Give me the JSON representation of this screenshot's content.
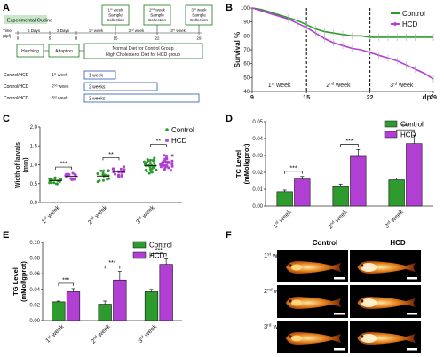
{
  "colors": {
    "control": "#2e9b2e",
    "hcd": "#b13fd3",
    "dark": "#222222",
    "blue": "#2a55b5",
    "green_box": "#1a7a1a"
  },
  "panels": {
    "A": "A",
    "B": "B",
    "C": "C",
    "D": "D",
    "E": "E",
    "F": "F"
  },
  "outline": {
    "title": "Experimental Outline",
    "time_label": "Time",
    "time_unit": "(dpf)",
    "days": [
      "0",
      "5",
      "8",
      "15",
      "22",
      "29"
    ],
    "intervals": [
      "5 Days",
      "3 Days",
      "1st week",
      "2nd week",
      "3rd week"
    ],
    "collections": [
      "1st week Sample Collection",
      "2nd week Sample Collection",
      "3rd week Sample Collection"
    ],
    "hatching": "Hatching",
    "adaption": "Adaption",
    "diet_line1": "Normal Diet for Control Group",
    "diet_line2": "High Cholesterol Diet for HCD group",
    "groups": [
      {
        "label": "Control/HCD 1st week",
        "bar": "1 week"
      },
      {
        "label": "Control/HCD 2nd week",
        "bar": "2 weeks"
      },
      {
        "label": "Control/HCD 3rd week",
        "bar": "3 weeks"
      }
    ]
  },
  "chart_data": [
    {
      "panel": "B",
      "type": "line",
      "ylabel": "Survival %",
      "xlabel": "dpf",
      "xlim": [
        9,
        29
      ],
      "ylim": [
        40,
        100
      ],
      "xticks": [
        "9",
        "15",
        "22",
        "29"
      ],
      "yticks": [
        "40",
        "50",
        "60",
        "70",
        "80",
        "90",
        "100"
      ],
      "legend": [
        "Control",
        "HCD"
      ],
      "annotations": [
        "1st week",
        "2nd week",
        "3rd week"
      ],
      "series": [
        {
          "name": "Control",
          "x": [
            9,
            10,
            11,
            12,
            13,
            14,
            15,
            16,
            17,
            18,
            19,
            20,
            21,
            22,
            23,
            24,
            25,
            26,
            27,
            28,
            29
          ],
          "values": [
            100,
            99,
            97,
            95,
            93,
            91,
            88,
            85,
            83,
            82,
            81,
            80,
            80,
            79,
            79,
            79,
            79,
            79,
            79,
            79,
            79
          ]
        },
        {
          "name": "HCD",
          "x": [
            9,
            10,
            11,
            12,
            13,
            14,
            15,
            16,
            17,
            18,
            19,
            20,
            21,
            22,
            23,
            24,
            25,
            26,
            27,
            28,
            29
          ],
          "values": [
            100,
            98,
            96,
            94,
            92,
            89,
            86,
            82,
            78,
            75,
            73,
            71,
            70,
            68,
            66,
            64,
            62,
            59,
            56,
            53,
            49
          ]
        }
      ]
    },
    {
      "panel": "C",
      "type": "scatter",
      "ylabel": "Width of larvals (mm)",
      "ylim": [
        0,
        2
      ],
      "yticks": [
        "0.0",
        "0.5",
        "1.0",
        "1.5",
        "2.0"
      ],
      "categories": [
        "1st week",
        "2nd week",
        "3rd week"
      ],
      "legend": [
        "Control",
        "HCD"
      ],
      "significance": [
        "***",
        "**",
        "**"
      ],
      "series": [
        {
          "name": "Control",
          "values": [
            0.58,
            0.7,
            0.98
          ]
        },
        {
          "name": "HCD",
          "values": [
            0.69,
            0.82,
            1.05
          ]
        }
      ]
    },
    {
      "panel": "D",
      "type": "bar",
      "ylabel": "TC Level (mMol/gprot)",
      "ylim": [
        0,
        0.05
      ],
      "yticks": [
        "0.00",
        "0.01",
        "0.02",
        "0.03",
        "0.04",
        "0.05"
      ],
      "categories": [
        "1st week",
        "2nd week",
        "3rd week"
      ],
      "legend": [
        "Control",
        "HCD"
      ],
      "significance": [
        "***",
        "***",
        "***"
      ],
      "series": [
        {
          "name": "Control",
          "values": [
            0.0085,
            0.0115,
            0.0155
          ],
          "errors": [
            0.001,
            0.0015,
            0.001
          ]
        },
        {
          "name": "HCD",
          "values": [
            0.016,
            0.0295,
            0.037
          ],
          "errors": [
            0.0015,
            0.004,
            0.005
          ]
        }
      ]
    },
    {
      "panel": "E",
      "type": "bar",
      "ylabel": "TG Level (mMol/gprot)",
      "ylim": [
        0,
        0.1
      ],
      "yticks": [
        "0.00",
        "0.02",
        "0.04",
        "0.06",
        "0.08",
        "0.10"
      ],
      "categories": [
        "1st week",
        "2nd week",
        "3rd week"
      ],
      "legend": [
        "Control",
        "HCD"
      ],
      "significance": [
        "***",
        "***",
        "***"
      ],
      "series": [
        {
          "name": "Control",
          "values": [
            0.024,
            0.021,
            0.037
          ],
          "errors": [
            0.001,
            0.004,
            0.003
          ]
        },
        {
          "name": "HCD",
          "values": [
            0.037,
            0.052,
            0.072
          ],
          "errors": [
            0.004,
            0.011,
            0.007
          ]
        }
      ]
    }
  ],
  "panel_f": {
    "col_labels": [
      "Control",
      "HCD"
    ],
    "row_labels": [
      "1st week",
      "2nd week",
      "3rd week"
    ]
  }
}
